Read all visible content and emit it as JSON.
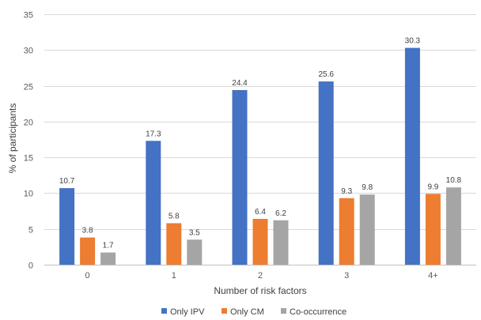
{
  "chart_data": {
    "type": "bar",
    "title": "",
    "xlabel": "Number  of risk factors",
    "ylabel": "% of participants",
    "categories": [
      "0",
      "1",
      "2",
      "3",
      "4+"
    ],
    "series": [
      {
        "name": "Only IPV",
        "color": "#4472C4",
        "values": [
          10.7,
          17.3,
          24.4,
          25.6,
          30.3
        ],
        "labels": [
          "10.7",
          "17.3",
          "24.4",
          "25.6",
          "30.3"
        ]
      },
      {
        "name": "Only CM",
        "color": "#ED7D31",
        "values": [
          3.8,
          5.8,
          6.4,
          9.3,
          9.9
        ],
        "labels": [
          "3.8",
          "5.8",
          "6.4",
          "9.3",
          "9.9"
        ]
      },
      {
        "name": "Co-occurrence",
        "color": "#A5A5A5",
        "values": [
          1.7,
          3.5,
          6.2,
          9.8,
          10.8
        ],
        "labels": [
          "1.7",
          "3.5",
          "6.2",
          "9.8",
          "10.8"
        ]
      }
    ],
    "ylim": [
      0,
      35
    ],
    "yticks": [
      "0",
      "5",
      "10",
      "15",
      "20",
      "25",
      "30",
      "35"
    ],
    "grid": true,
    "legend_position": "bottom"
  }
}
